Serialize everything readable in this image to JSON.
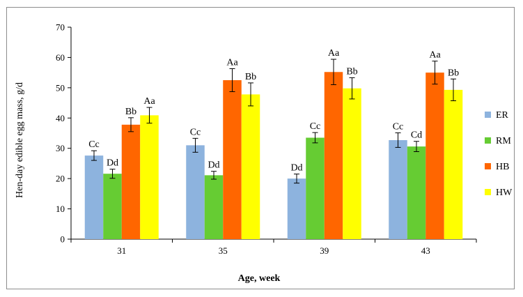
{
  "chart_data": {
    "type": "bar",
    "title": "",
    "xlabel": "Age, week",
    "ylabel": "Hen-day edible egg mass, g/d",
    "ylim": [
      0,
      70
    ],
    "yticks": [
      "0",
      "10",
      "20",
      "30",
      "40",
      "50",
      "60",
      "70"
    ],
    "categories": [
      "31",
      "35",
      "39",
      "43"
    ],
    "grid": false,
    "legend_position": "right",
    "series": [
      {
        "name": "ER",
        "color": "#8DB3DE",
        "values": [
          27.6,
          31.0,
          20.0,
          32.7
        ],
        "errors": [
          1.6,
          2.3,
          1.5,
          2.4
        ],
        "labels": [
          "Cc",
          "Cc",
          "Dd",
          "Cc"
        ]
      },
      {
        "name": "RM",
        "color": "#66CC33",
        "values": [
          21.6,
          21.1,
          33.5,
          30.6
        ],
        "errors": [
          1.5,
          1.3,
          1.7,
          1.7
        ],
        "labels": [
          "Dd",
          "Dd",
          "Cc",
          "Cd"
        ]
      },
      {
        "name": "HB",
        "color": "#FF6600",
        "values": [
          37.8,
          52.5,
          55.2,
          55.0
        ],
        "errors": [
          2.3,
          3.8,
          4.2,
          3.8
        ],
        "labels": [
          "Bb",
          "Aa",
          "Aa",
          "Aa"
        ]
      },
      {
        "name": "HW",
        "color": "#FFFF00",
        "values": [
          40.9,
          47.8,
          49.8,
          49.3
        ],
        "errors": [
          2.6,
          3.8,
          3.5,
          3.6
        ],
        "labels": [
          "Aa",
          "Bb",
          "Bb",
          "Bb"
        ]
      }
    ]
  }
}
